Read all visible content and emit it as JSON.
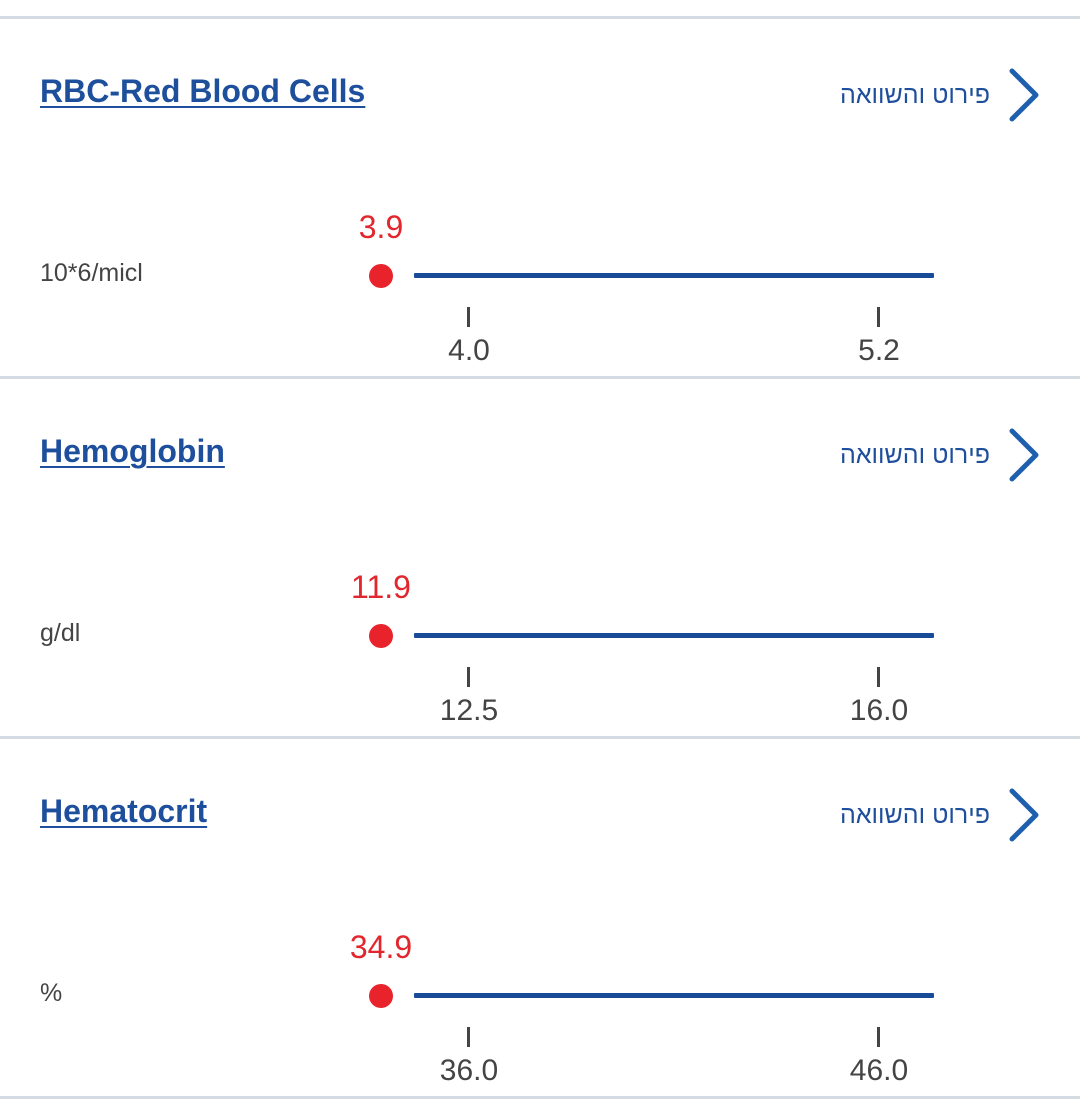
{
  "details_label": "פירוט והשוואה",
  "colors": {
    "title": "#1e4f9c",
    "out_of_range_value": "#e2262d",
    "range_line": "#1a4b98",
    "divider": "#d5dbe3"
  },
  "tests": [
    {
      "name": "RBC-Red Blood Cells",
      "unit": "10*6/micl",
      "value": "3.9",
      "range_low": "4.0",
      "range_high": "5.2"
    },
    {
      "name": "Hemoglobin",
      "unit": "g/dl",
      "value": "11.9",
      "range_low": "12.5",
      "range_high": "16.0"
    },
    {
      "name": "Hematocrit",
      "unit": "%",
      "value": "34.9",
      "range_low": "36.0",
      "range_high": "46.0"
    }
  ]
}
